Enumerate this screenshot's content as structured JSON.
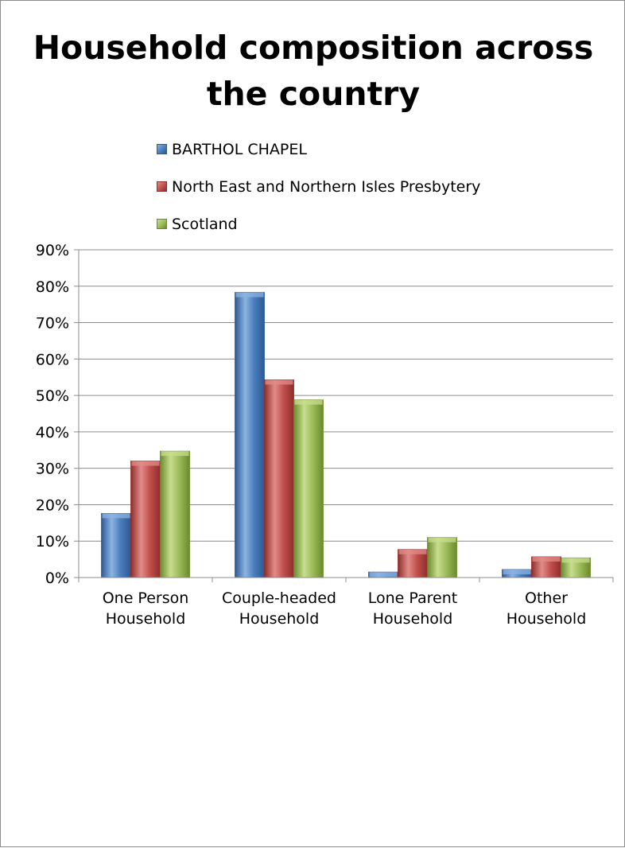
{
  "chart_data": {
    "type": "bar",
    "title": "Household composition across the country",
    "title_lines": [
      "Household composition across",
      "the country"
    ],
    "categories": [
      "One Person Household",
      "Couple-headed Household",
      "Lone Parent Household",
      "Other Household"
    ],
    "category_lines": [
      [
        "One Person",
        "Household"
      ],
      [
        "Couple-headed",
        "Household"
      ],
      [
        "Lone Parent",
        "Household"
      ],
      [
        "Other",
        "Household"
      ]
    ],
    "series": [
      {
        "name": "BARTHOL CHAPEL",
        "values": [
          17.6,
          78.3,
          1.5,
          2.2
        ],
        "color": "#4a7ebb",
        "color_light": "#8db3e2",
        "color_dark": "#2c5a95"
      },
      {
        "name": "North East and Northern Isles Presbytery",
        "values": [
          32.0,
          54.3,
          7.7,
          5.7
        ],
        "color": "#c0504d",
        "color_light": "#e28c8a",
        "color_dark": "#8e2d2a"
      },
      {
        "name": "Scotland",
        "values": [
          34.7,
          48.8,
          11.0,
          5.4
        ],
        "color": "#9bbb59",
        "color_light": "#c8dd8e",
        "color_dark": "#6b8b2c"
      }
    ],
    "ylim": [
      0,
      90
    ],
    "yticks": [
      0,
      10,
      20,
      30,
      40,
      50,
      60,
      70,
      80,
      90
    ],
    "ytick_labels": [
      "0%",
      "10%",
      "20%",
      "30%",
      "40%",
      "50%",
      "60%",
      "70%",
      "80%",
      "90%"
    ],
    "xlabel": "",
    "ylabel": "",
    "grid": true,
    "legend_position": "top"
  }
}
